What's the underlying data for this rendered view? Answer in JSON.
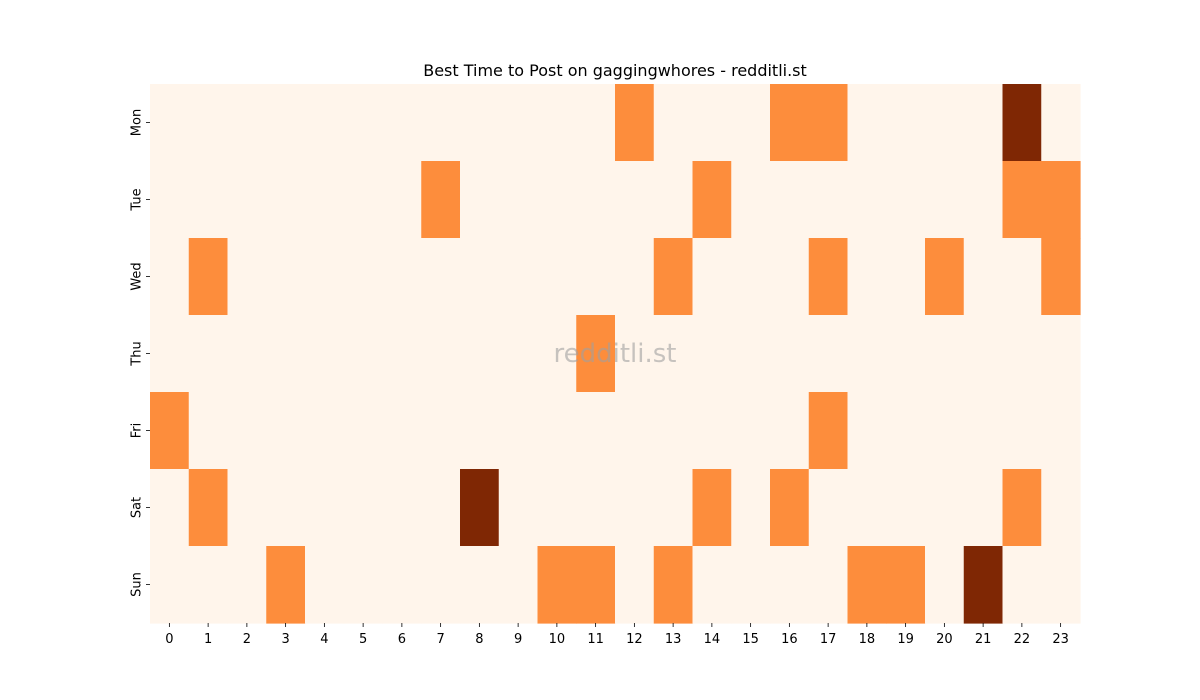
{
  "chart_data": {
    "type": "heatmap",
    "title": "Best Time to Post on gaggingwhores - redditli.st",
    "watermark": "redditli.st",
    "x_labels": [
      "0",
      "1",
      "2",
      "3",
      "4",
      "5",
      "6",
      "7",
      "8",
      "9",
      "10",
      "11",
      "12",
      "13",
      "14",
      "15",
      "16",
      "17",
      "18",
      "19",
      "20",
      "21",
      "22",
      "23"
    ],
    "y_labels": [
      "Mon",
      "Tue",
      "Wed",
      "Thu",
      "Fri",
      "Sat",
      "Sun"
    ],
    "values": [
      [
        0,
        0,
        0,
        0,
        0,
        0,
        0,
        0,
        0,
        0,
        0,
        0,
        1,
        0,
        0,
        0,
        1,
        1,
        0,
        0,
        0,
        0,
        2,
        0
      ],
      [
        0,
        0,
        0,
        0,
        0,
        0,
        0,
        1,
        0,
        0,
        0,
        0,
        0,
        0,
        1,
        0,
        0,
        0,
        0,
        0,
        0,
        0,
        1,
        1
      ],
      [
        0,
        1,
        0,
        0,
        0,
        0,
        0,
        0,
        0,
        0,
        0,
        0,
        0,
        1,
        0,
        0,
        0,
        1,
        0,
        0,
        1,
        0,
        0,
        1
      ],
      [
        0,
        0,
        0,
        0,
        0,
        0,
        0,
        0,
        0,
        0,
        0,
        1,
        0,
        0,
        0,
        0,
        0,
        0,
        0,
        0,
        0,
        0,
        0,
        0
      ],
      [
        1,
        0,
        0,
        0,
        0,
        0,
        0,
        0,
        0,
        0,
        0,
        0,
        0,
        0,
        0,
        0,
        0,
        1,
        0,
        0,
        0,
        0,
        0,
        0
      ],
      [
        0,
        1,
        0,
        0,
        0,
        0,
        0,
        0,
        2,
        0,
        0,
        0,
        0,
        0,
        1,
        0,
        1,
        0,
        0,
        0,
        0,
        0,
        1,
        0
      ],
      [
        0,
        0,
        0,
        1,
        0,
        0,
        0,
        0,
        0,
        0,
        1,
        1,
        0,
        1,
        0,
        0,
        0,
        0,
        1,
        1,
        0,
        2,
        0,
        0
      ]
    ],
    "colors": [
      "#fff5eb",
      "#fd8d3c",
      "#7f2704"
    ],
    "value_range": [
      0,
      2
    ]
  }
}
